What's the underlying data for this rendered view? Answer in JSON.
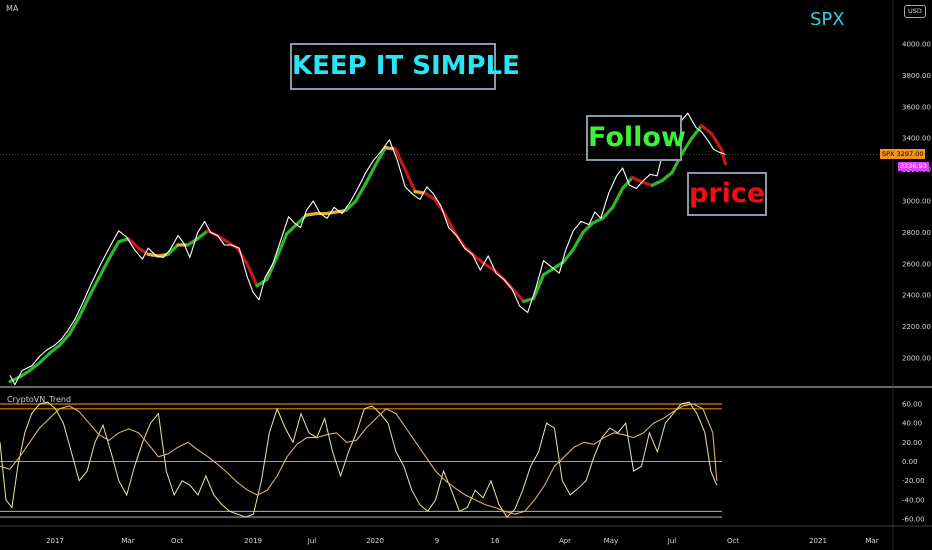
{
  "header": {
    "indicator_label": "MA",
    "symbol": "SPX",
    "currency_badge": "USD"
  },
  "annotations": {
    "keep": "KEEP IT SIMPLE",
    "follow": "Follow",
    "price": "price"
  },
  "price_tags": {
    "spx_label": "SPX",
    "spx_value": "3297.00",
    "ma_value": "3236.93"
  },
  "oscillator": {
    "title": "CryptoVN_Trend",
    "y_ticks": [
      "60.00",
      "40.00",
      "20.00",
      "0.00",
      "-20.00",
      "-40.00",
      "-60.00"
    ]
  },
  "colors": {
    "background": "#000000",
    "price_line": "#ffffff",
    "ma_up": "#2db82a",
    "ma_down": "#c2181a",
    "ma_flat": "#e8b32a",
    "osc_fast": "#e8e8a0",
    "osc_slow": "#d6b56a",
    "level_line": "#e07a1a",
    "keep_text": "#29e4f2",
    "follow_text": "#3ef03a",
    "price_text": "#f20d12"
  },
  "chart_data": [
    {
      "type": "line",
      "title": "SPX",
      "y_ticks": [
        2000,
        2200,
        2400,
        2600,
        2800,
        3000,
        3200,
        3400,
        3600,
        3800,
        4000
      ],
      "ylim": [
        1800,
        4100
      ],
      "x_ticks": [
        "2017",
        "Mar",
        "Oct",
        "2019",
        "Jul",
        "2020",
        "9",
        "16",
        "Apr",
        "May",
        "Jul",
        "Oct",
        "2021",
        "Mar"
      ],
      "series": [
        {
          "name": "SPX",
          "x": [
            0,
            5,
            12,
            22,
            30,
            37,
            45,
            52,
            58,
            66,
            75,
            82,
            92,
            102,
            110,
            118,
            126,
            134,
            140,
            148,
            155,
            162,
            170,
            176,
            182,
            190,
            197,
            203,
            210,
            217,
            224,
            232,
            240,
            246,
            252,
            258,
            266,
            274,
            282,
            288,
            294,
            300,
            307,
            314,
            321,
            328,
            336,
            344,
            352,
            360,
            368,
            376,
            384,
            392,
            400,
            408,
            415,
            422,
            428,
            436,
            444,
            452,
            460,
            468,
            476,
            484,
            492,
            500,
            508,
            516,
            524,
            532,
            540,
            548,
            556,
            562,
            570,
            578,
            586,
            592,
            598,
            606,
            614,
            620,
            627,
            634,
            641,
            648,
            655,
            662,
            670,
            678,
            686,
            694,
            700,
            706,
            712,
            718,
            724
          ],
          "y": [
            1890,
            1830,
            1920,
            1950,
            2010,
            2050,
            2080,
            2120,
            2170,
            2250,
            2370,
            2470,
            2600,
            2720,
            2810,
            2770,
            2690,
            2630,
            2700,
            2650,
            2640,
            2690,
            2780,
            2730,
            2640,
            2800,
            2870,
            2800,
            2780,
            2720,
            2720,
            2700,
            2520,
            2420,
            2370,
            2510,
            2600,
            2750,
            2900,
            2860,
            2830,
            2940,
            3000,
            2920,
            2890,
            2960,
            2920,
            2990,
            3080,
            3180,
            3260,
            3320,
            3390,
            3260,
            3090,
            3040,
            3010,
            3090,
            3050,
            2970,
            2830,
            2780,
            2700,
            2660,
            2560,
            2650,
            2540,
            2500,
            2440,
            2330,
            2290,
            2440,
            2620,
            2580,
            2540,
            2680,
            2810,
            2870,
            2850,
            2930,
            2890,
            3050,
            3160,
            3210,
            3100,
            3080,
            3130,
            3170,
            3160,
            3340,
            3410,
            3500,
            3560,
            3470,
            3440,
            3390,
            3330,
            3310,
            3297
          ]
        },
        {
          "name": "MA",
          "x": [
            0,
            10,
            20,
            30,
            40,
            50,
            60,
            70,
            80,
            90,
            100,
            110,
            120,
            130,
            140,
            150,
            160,
            170,
            180,
            190,
            200,
            210,
            220,
            230,
            240,
            250,
            260,
            270,
            280,
            290,
            300,
            310,
            320,
            330,
            340,
            350,
            360,
            370,
            380,
            390,
            400,
            410,
            420,
            430,
            440,
            450,
            460,
            470,
            480,
            490,
            500,
            510,
            520,
            530,
            540,
            550,
            560,
            570,
            580,
            590,
            600,
            610,
            620,
            630,
            640,
            650,
            660,
            670,
            680,
            690,
            700,
            710,
            720,
            724
          ],
          "y": [
            1850,
            1880,
            1920,
            1970,
            2030,
            2080,
            2150,
            2260,
            2390,
            2510,
            2630,
            2740,
            2760,
            2700,
            2660,
            2650,
            2660,
            2720,
            2720,
            2760,
            2810,
            2780,
            2740,
            2700,
            2600,
            2460,
            2500,
            2640,
            2790,
            2850,
            2910,
            2920,
            2920,
            2930,
            2940,
            3000,
            3110,
            3230,
            3340,
            3330,
            3200,
            3060,
            3050,
            3010,
            2920,
            2800,
            2710,
            2650,
            2600,
            2560,
            2500,
            2430,
            2360,
            2380,
            2530,
            2570,
            2610,
            2690,
            2800,
            2860,
            2890,
            2960,
            3080,
            3150,
            3120,
            3100,
            3130,
            3180,
            3300,
            3400,
            3480,
            3430,
            3330,
            3236.93
          ]
        }
      ],
      "last_price": 3297.0,
      "ma_value": 3236.93
    },
    {
      "type": "line",
      "title": "CryptoVN_Trend",
      "y_ticks": [
        60,
        40,
        20,
        0,
        -20,
        -40,
        -60
      ],
      "ylim": [
        -65,
        68
      ],
      "levels": [
        60,
        55,
        0,
        -52,
        -58
      ],
      "series": [
        {
          "name": "fast",
          "x": [
            0,
            6,
            12,
            18,
            25,
            32,
            40,
            48,
            56,
            64,
            72,
            80,
            88,
            96,
            104,
            112,
            120,
            128,
            136,
            144,
            152,
            160,
            168,
            176,
            184,
            192,
            200,
            208,
            216,
            224,
            232,
            240,
            248,
            256,
            264,
            272,
            280,
            288,
            296,
            304,
            312,
            320,
            328,
            336,
            344,
            352,
            360,
            368,
            376,
            384,
            392,
            400,
            408,
            416,
            424,
            432,
            440,
            448,
            456,
            464,
            472,
            480,
            488,
            496,
            504,
            512,
            520,
            528,
            536,
            544,
            552,
            560,
            568,
            576,
            584,
            592,
            600,
            608,
            616,
            624,
            632,
            640,
            648,
            656,
            664,
            672,
            680,
            688,
            696,
            704,
            712,
            718,
            724
          ],
          "y": [
            20,
            -40,
            -48,
            -5,
            30,
            50,
            60,
            62,
            55,
            40,
            10,
            -20,
            -10,
            20,
            38,
            10,
            -20,
            -35,
            -5,
            20,
            40,
            50,
            -10,
            -35,
            -20,
            -25,
            -35,
            -15,
            -35,
            -45,
            -52,
            -55,
            -58,
            -55,
            -20,
            30,
            55,
            35,
            20,
            50,
            30,
            25,
            45,
            10,
            -15,
            10,
            30,
            55,
            58,
            50,
            40,
            10,
            -5,
            -30,
            -45,
            -52,
            -40,
            -10,
            -30,
            -52,
            -48,
            -30,
            -38,
            -20,
            -45,
            -58,
            -50,
            -30,
            -5,
            10,
            40,
            35,
            -20,
            -35,
            -28,
            -20,
            5,
            25,
            35,
            30,
            40,
            -10,
            -5,
            30,
            10,
            40,
            50,
            60,
            62,
            50,
            30,
            -10,
            -25
          ]
        },
        {
          "name": "slow",
          "x": [
            0,
            10,
            20,
            30,
            40,
            50,
            60,
            70,
            80,
            90,
            100,
            110,
            120,
            130,
            140,
            150,
            160,
            170,
            180,
            190,
            200,
            210,
            220,
            230,
            240,
            250,
            260,
            270,
            280,
            290,
            300,
            310,
            320,
            330,
            340,
            350,
            360,
            370,
            380,
            390,
            400,
            410,
            420,
            430,
            440,
            450,
            460,
            470,
            480,
            490,
            500,
            510,
            520,
            530,
            540,
            550,
            560,
            570,
            580,
            590,
            600,
            610,
            620,
            630,
            640,
            650,
            660,
            670,
            680,
            690,
            700,
            710,
            720,
            724
          ],
          "y": [
            -5,
            -8,
            5,
            20,
            35,
            45,
            55,
            58,
            52,
            40,
            28,
            22,
            30,
            34,
            30,
            18,
            5,
            8,
            15,
            20,
            12,
            5,
            -3,
            -12,
            -22,
            -30,
            -35,
            -30,
            -15,
            5,
            18,
            25,
            25,
            28,
            30,
            20,
            22,
            35,
            45,
            55,
            50,
            35,
            20,
            5,
            -10,
            -20,
            -28,
            -35,
            -40,
            -45,
            -48,
            -52,
            -55,
            -52,
            -40,
            -25,
            -5,
            5,
            15,
            20,
            18,
            25,
            30,
            28,
            25,
            30,
            40,
            45,
            52,
            58,
            60,
            55,
            30,
            -20
          ]
        }
      ]
    }
  ]
}
